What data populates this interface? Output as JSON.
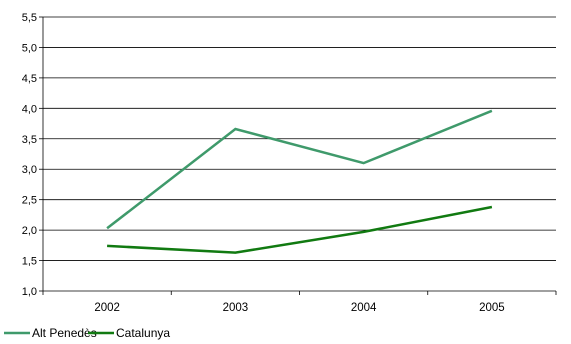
{
  "chart_data": {
    "type": "line",
    "title": "",
    "xlabel": "",
    "ylabel": "",
    "categories": [
      "2002",
      "2003",
      "2004",
      "2005"
    ],
    "ylim": [
      1.0,
      5.5
    ],
    "yticks": [
      "1,0",
      "1,5",
      "2,0",
      "2,5",
      "3,0",
      "3,5",
      "4,0",
      "4,5",
      "5,0",
      "5,5"
    ],
    "grid": true,
    "legend_position": "bottom-left",
    "series": [
      {
        "name": "Alt Penedès",
        "color": "#3f9a6b",
        "values": [
          2.03,
          3.66,
          3.1,
          3.96
        ]
      },
      {
        "name": "Catalunya",
        "color": "#117a11",
        "values": [
          1.74,
          1.63,
          1.97,
          2.38
        ]
      }
    ]
  }
}
